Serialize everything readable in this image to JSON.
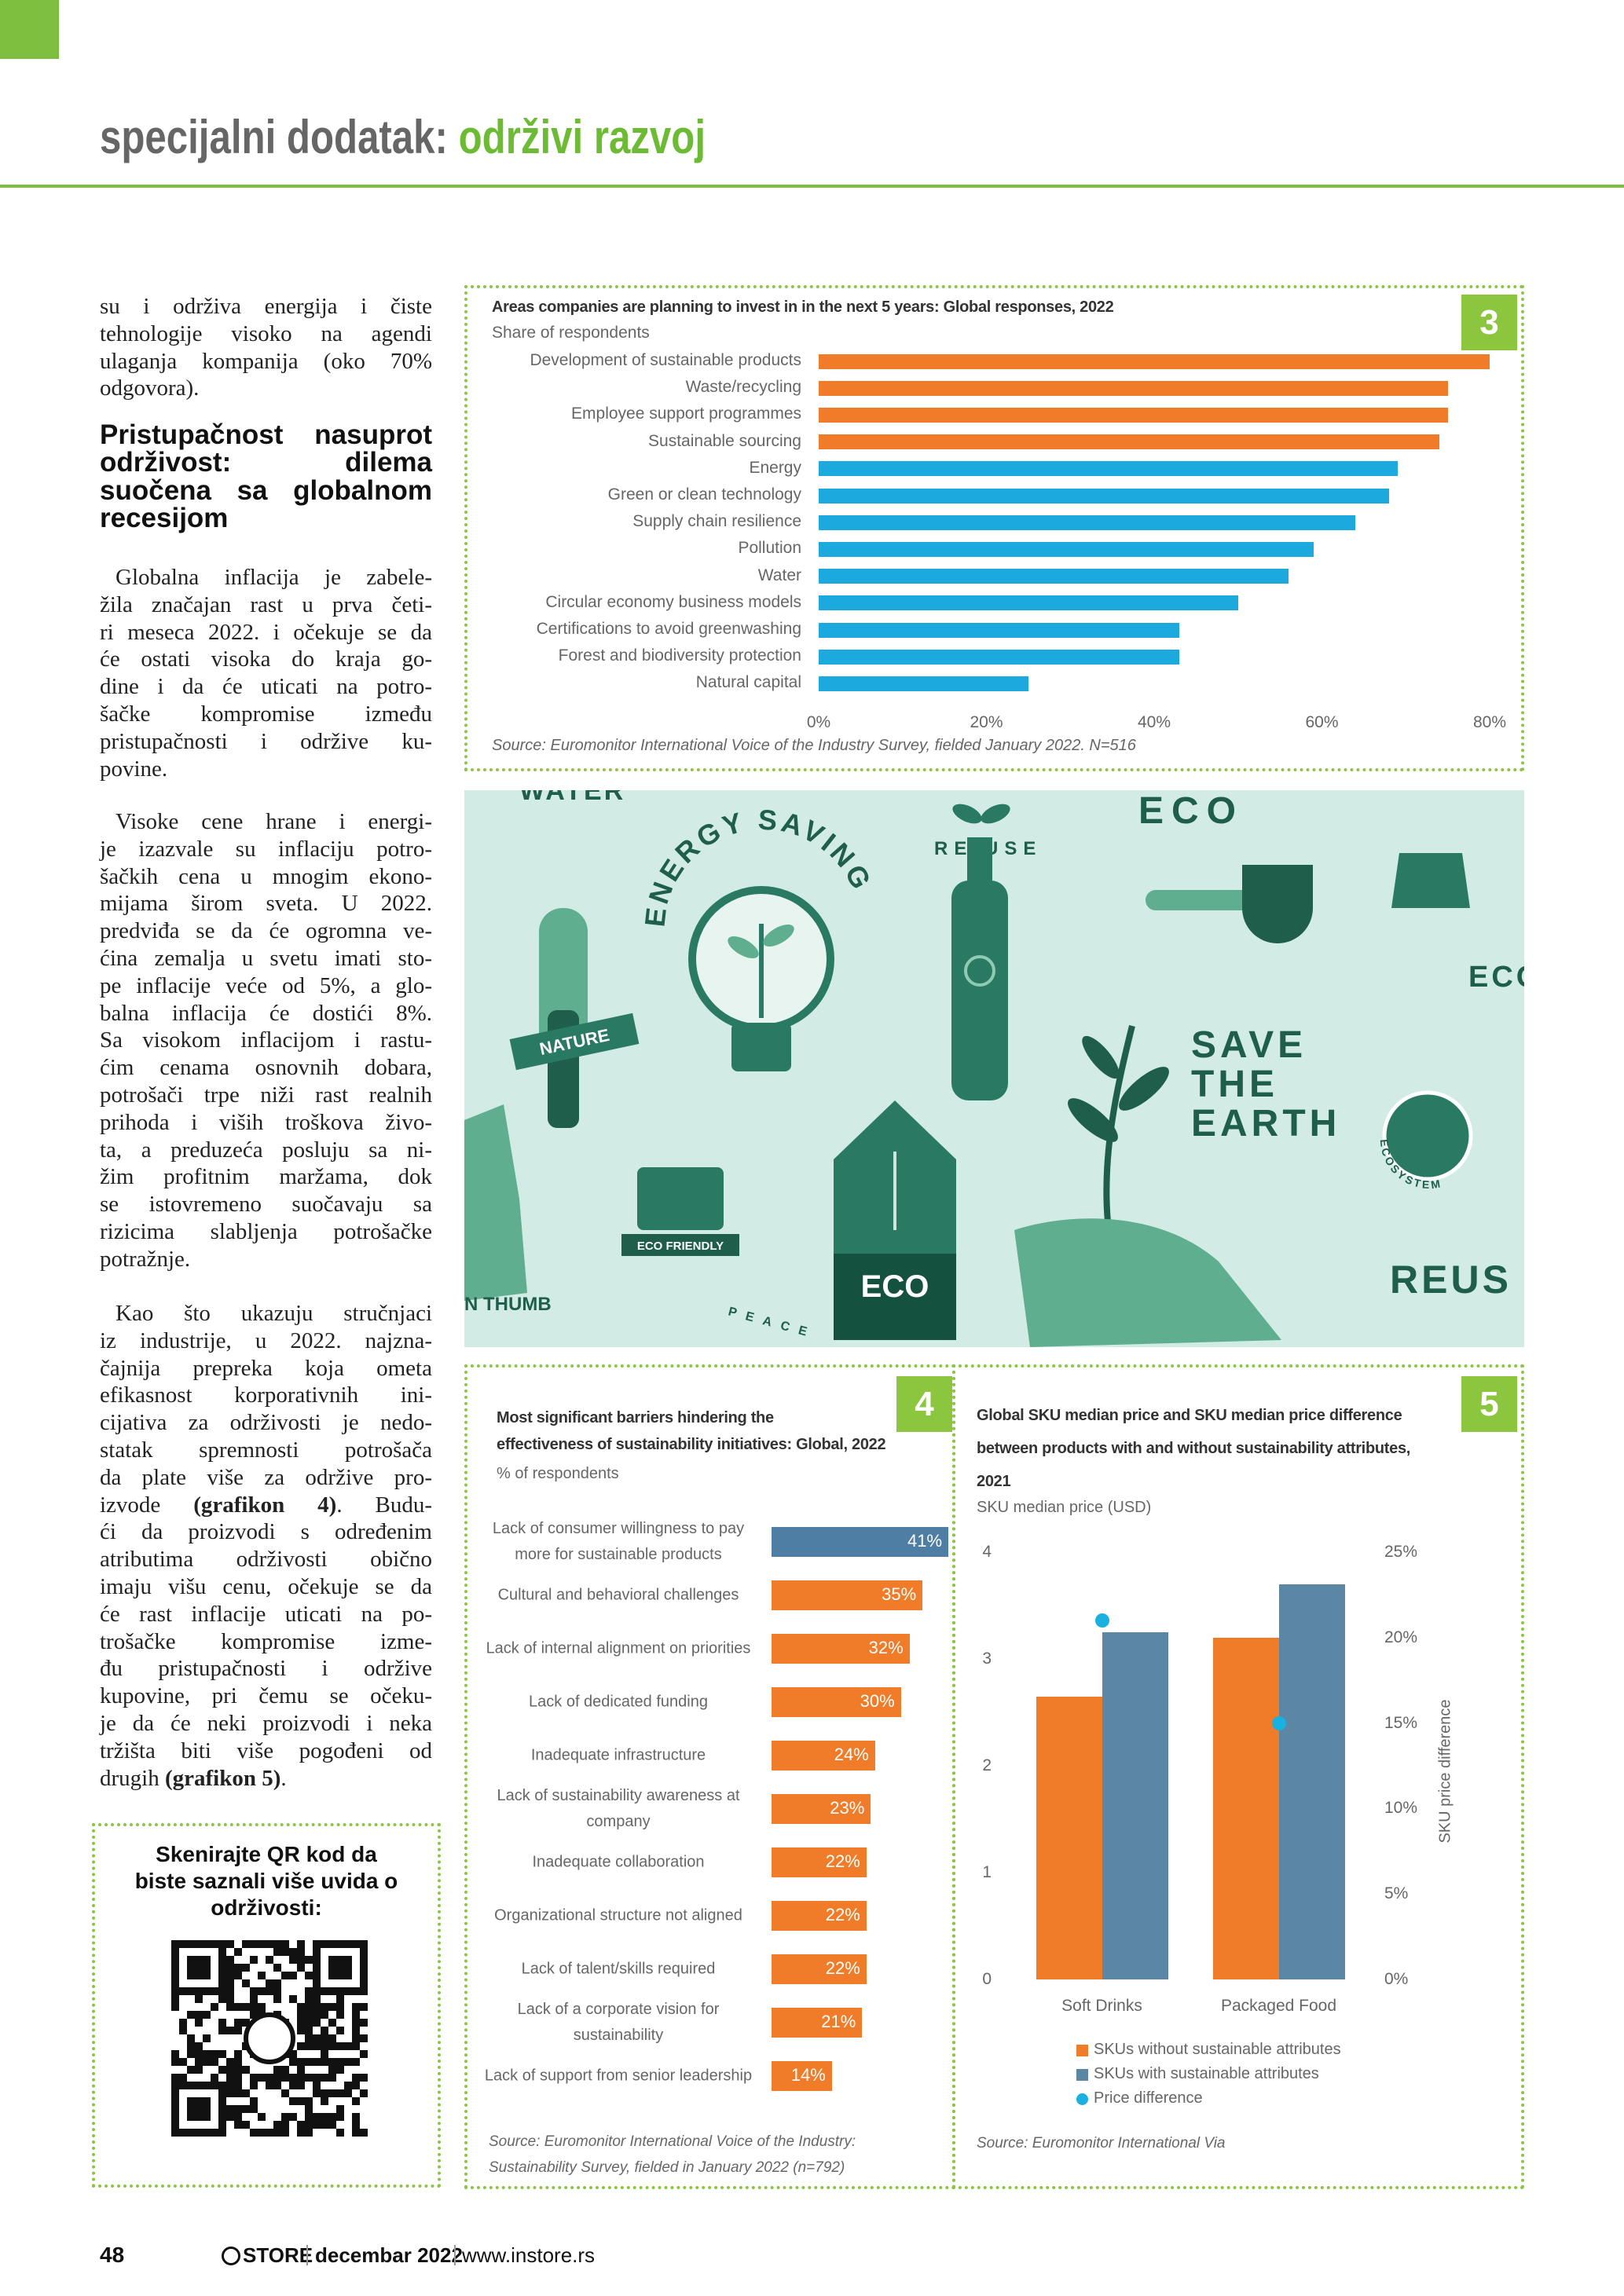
{
  "header": {
    "section": "specijalni dodatak:",
    "topic": "održivi razvoj"
  },
  "article": {
    "intro": [
      "su i održiva energija i čiste",
      "tehnologije visoko na agendi",
      "ulaganja kompanija (oko 70%",
      "odgovora)."
    ],
    "heading": [
      "Pristupačnost nasuprot",
      "održivost: dilema",
      "suočena sa globalnom",
      "recesijom"
    ],
    "paragraphs": [
      [
        "Globalna inflacija je zabele-",
        "žila značajan rast u prva četi-",
        "ri meseca 2022. i očekuje se da",
        "će ostati visoka do kraja go-",
        "dine i da će uticati na potro-",
        "šačke kompromise između",
        "pristupačnosti i održive ku-",
        "povine."
      ],
      [
        "Visoke cene hrane i energi-",
        "je izazvale su inflaciju potro-",
        "šačkih cena u mnogim ekono-",
        "mijama širom sveta. U 2022.",
        "predviđa se da će ogromna ve-",
        "ćina zemalja u svetu imati sto-",
        "pe inflacije veće od 5%, a glo-",
        "balna inflacija će dostići 8%.",
        "Sa visokom inflacijom i rastu-",
        "ćim cenama osnovnih dobara,",
        "potrošači trpe niži rast realnih",
        "prihoda i viših troškova živo-",
        "ta, a preduzeća posluju sa ni-",
        "žim profitnim maržama, dok",
        "se istovremeno suočavaju sa",
        "rizicima slabljenja potrošačke",
        "potražnje."
      ],
      [
        "Kao što ukazuju stručnjaci",
        "iz industrije, u 2022. najzna-",
        "čajnija prepreka koja ometa",
        "efikasnost korporativnih ini-",
        "cijativa za održivosti je nedo-",
        "statak spremnosti potrošača",
        "da plate više za održive pro-",
        {
          "parts": [
            "izvode ",
            "(grafikon 4)",
            ". Budu-"
          ],
          "bold_part": 1
        },
        "ći da proizvodi s određenim",
        "atributima održivosti obično",
        "imaju višu cenu, očekuje se da",
        "će rast inflacije uticati na po-",
        "trošačke kompromise izme-",
        "đu pristupačnosti i održive",
        "kupovine, pri čemu se očeku-",
        "je da će neki proizvodi i neka",
        "tržišta biti više pogođeni od",
        {
          "parts": [
            "drugih ",
            "(grafikon 5)",
            "."
          ],
          "bold_part": 1
        }
      ]
    ]
  },
  "qr_box": {
    "text": [
      "Skenirajte QR kod da",
      "biste saznali više uvida o",
      "održivosti:"
    ]
  },
  "illustration": {
    "texts": [
      "WATER",
      "ENERGY SAVING",
      "RE USE",
      "ECO",
      "ECO",
      "NATURE",
      "SAVE",
      "THE",
      "EARTH",
      "ECO",
      "ECO FRIENDLY",
      "ECOSYSTEM",
      "REUS",
      "N THUMB",
      "PEACE"
    ]
  },
  "footer": {
    "page": "48",
    "brand": "STORE",
    "issue": "decembar 2022",
    "site": "www.instore.rs"
  },
  "chart_data": [
    {
      "type": "bar",
      "orientation": "horizontal",
      "badge": "3",
      "title": "Areas companies are planning to invest in in the next 5 years: Global responses, 2022",
      "subtitle": "Share of respondents",
      "categories": [
        "Development of sustainable products",
        "Waste/recycling",
        "Employee support programmes",
        "Sustainable sourcing",
        "Energy",
        "Green or clean technology",
        "Supply chain resilience",
        "Pollution",
        "Water",
        "Circular economy business models",
        "Certifications to avoid greenwashing",
        "Forest and biodiversity protection",
        "Natural capital"
      ],
      "values": [
        80,
        75,
        75,
        74,
        69,
        68,
        64,
        59,
        56,
        50,
        43,
        43,
        25
      ],
      "colors": [
        "#f07c2a",
        "#f07c2a",
        "#f07c2a",
        "#f07c2a",
        "#1ca9de",
        "#1ca9de",
        "#1ca9de",
        "#1ca9de",
        "#1ca9de",
        "#1ca9de",
        "#1ca9de",
        "#1ca9de",
        "#1ca9de"
      ],
      "xlim": [
        0,
        80
      ],
      "xticks": [
        {
          "value": 0,
          "label": "0%"
        },
        {
          "value": 20,
          "label": "20%"
        },
        {
          "value": 40,
          "label": "40%"
        },
        {
          "value": 60,
          "label": "60%"
        },
        {
          "value": 80,
          "label": "80%"
        }
      ],
      "source": "Source: Euromonitor International Voice of the Industry Survey, fielded January 2022. N=516"
    },
    {
      "type": "bar",
      "orientation": "horizontal",
      "badge": "4",
      "title": [
        "Most significant barriers hindering the",
        "effectiveness of sustainability initiatives: Global, 2022"
      ],
      "subtitle": "% of respondents",
      "categories": [
        "Lack of consumer willingness to pay more for sustainable products",
        "Cultural and behavioral challenges",
        "Lack of internal alignment on priorities",
        "Lack of dedicated funding",
        "Inadequate infrastructure",
        "Lack of sustainability awareness at company",
        "Inadequate collaboration",
        "Organizational structure not aligned",
        "Lack of talent/skills required",
        "Lack of a corporate vision for sustainability",
        "Lack of support from senior leadership"
      ],
      "values": [
        41,
        35,
        32,
        30,
        24,
        23,
        22,
        22,
        22,
        21,
        14
      ],
      "value_labels": [
        "41%",
        "35%",
        "32%",
        "30%",
        "24%",
        "23%",
        "22%",
        "22%",
        "22%",
        "21%",
        "14%"
      ],
      "colors": [
        "#4e7ea3",
        "#f07c2a",
        "#f07c2a",
        "#f07c2a",
        "#f07c2a",
        "#f07c2a",
        "#f07c2a",
        "#f07c2a",
        "#f07c2a",
        "#f07c2a",
        "#f07c2a"
      ],
      "source": [
        "Source: Euromonitor International Voice of the Industry:",
        "Sustainability Survey, fielded in January 2022 (n=792)"
      ]
    },
    {
      "type": "bar",
      "badge": "5",
      "title": [
        "Global SKU median price and SKU median price difference",
        "between products with and without sustainability attributes,",
        "2021"
      ],
      "ylabel": "SKU median price (USD)",
      "y2label": "SKU price difference",
      "categories": [
        "Soft Drinks",
        "Packaged Food"
      ],
      "series": [
        {
          "name": "SKUs without sustainable attributes",
          "color": "#f07c2a",
          "values": [
            2.65,
            3.2
          ]
        },
        {
          "name": "SKUs with sustainable attributes",
          "color": "#5b87a4",
          "values": [
            3.25,
            3.7
          ]
        },
        {
          "name": "Price difference",
          "color": "#1ab0e0",
          "values": [
            21,
            15
          ],
          "axis": "y2",
          "type": "scatter"
        }
      ],
      "ylim": [
        0,
        4
      ],
      "yticks": [
        0,
        1,
        2,
        3,
        4
      ],
      "y2lim": [
        0,
        25
      ],
      "y2ticks": [
        {
          "value": 0,
          "label": "0%"
        },
        {
          "value": 5,
          "label": "5%"
        },
        {
          "value": 10,
          "label": "10%"
        },
        {
          "value": 15,
          "label": "15%"
        },
        {
          "value": 20,
          "label": "20%"
        },
        {
          "value": 25,
          "label": "25%"
        }
      ],
      "source": "Source: Euromonitor International Via"
    }
  ]
}
